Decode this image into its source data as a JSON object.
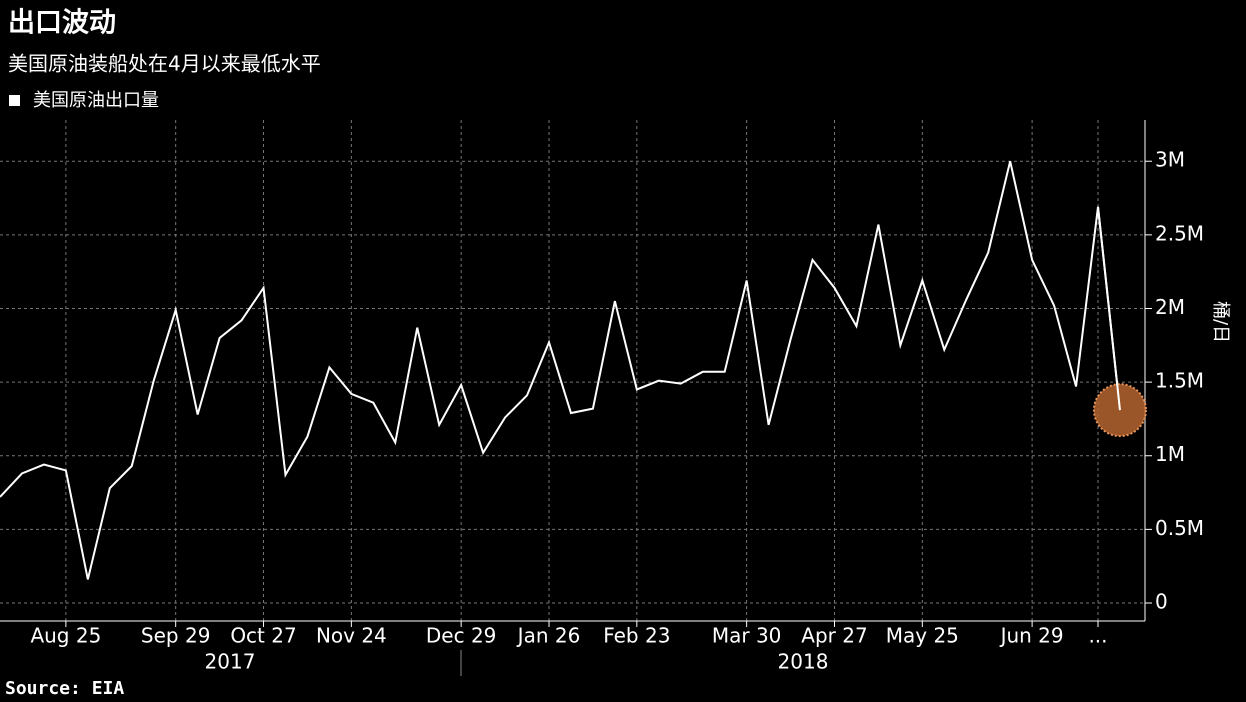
{
  "chart_data": {
    "type": "line",
    "title": "出口波动",
    "subtitle": "美国原油装船处在4月以来最低水平",
    "y_axis_label": "桶/日",
    "source": "Source: EIA",
    "categories": [
      null,
      null,
      null,
      "Aug 25",
      null,
      null,
      null,
      null,
      "Sep 29",
      null,
      null,
      null,
      "Oct 27",
      null,
      null,
      null,
      "Nov 24",
      null,
      null,
      null,
      null,
      "Dec 29",
      null,
      null,
      null,
      "Jan 26",
      null,
      null,
      null,
      "Feb 23",
      null,
      null,
      null,
      null,
      "Mar 30",
      null,
      null,
      null,
      "Apr 27",
      null,
      null,
      null,
      "May 25",
      null,
      null,
      null,
      null,
      "Jun 29",
      null,
      null,
      "...",
      null
    ],
    "x_groups": [
      "2017",
      "2018"
    ],
    "series": [
      {
        "name": "美国原油出口量",
        "color": "#ffffff",
        "values": [
          720000,
          880000,
          940000,
          900000,
          160000,
          780000,
          930000,
          1510000,
          1990000,
          1280000,
          1800000,
          1920000,
          2140000,
          870000,
          1130000,
          1600000,
          1420000,
          1360000,
          1090000,
          1870000,
          1210000,
          1480000,
          1020000,
          1260000,
          1410000,
          1770000,
          1290000,
          1320000,
          2050000,
          1450000,
          1510000,
          1490000,
          1570000,
          1570000,
          2190000,
          1210000,
          1790000,
          2330000,
          2140000,
          1880000,
          2570000,
          1750000,
          2190000,
          1720000,
          2060000,
          2380000,
          3000000,
          2330000,
          2020000,
          1470000,
          2690000,
          1310000
        ]
      }
    ],
    "highlight_color": "#b5652f",
    "ylim": [
      0,
      3280000
    ],
    "yticks": [
      0,
      {
        "value": 500000,
        "label": "0.5M"
      },
      {
        "value": 1000000,
        "label": "1M"
      },
      {
        "value": 1500000,
        "label": "1.5M"
      },
      {
        "value": 2000000,
        "label": "2M"
      },
      {
        "value": 2500000,
        "label": "2.5M"
      },
      {
        "value": 3000000,
        "label": "3M"
      }
    ],
    "grid": true
  }
}
